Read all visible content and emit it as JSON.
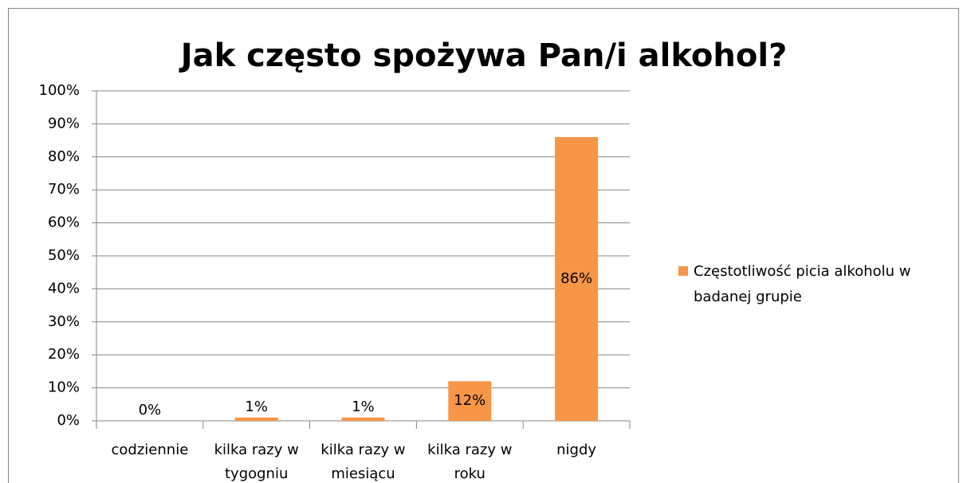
{
  "chart_data": {
    "type": "bar",
    "title": "Jak często spożywa Pan/i alkohol?",
    "categories": [
      "codziennie",
      "kilka razy w tygogniu",
      "kilka razy w miesiącu",
      "kilka razy w roku",
      "nigdy"
    ],
    "series": [
      {
        "name": "Częstotliwość picia alkoholu w badanej grupie",
        "color": "#f79646",
        "values": [
          0,
          1,
          1,
          12,
          86
        ],
        "value_labels": [
          "0%",
          "1%",
          "1%",
          "12%",
          "86%"
        ]
      }
    ],
    "ylim": [
      0,
      100
    ],
    "yticks": [
      {
        "value": 0,
        "label": "0%"
      },
      {
        "value": 10,
        "label": "10%"
      },
      {
        "value": 20,
        "label": "20%"
      },
      {
        "value": 30,
        "label": "30%"
      },
      {
        "value": 40,
        "label": "40%"
      },
      {
        "value": 50,
        "label": "50%"
      },
      {
        "value": 60,
        "label": "60%"
      },
      {
        "value": 70,
        "label": "70%"
      },
      {
        "value": 80,
        "label": "80%"
      },
      {
        "value": 90,
        "label": "90%"
      },
      {
        "value": 100,
        "label": "100%"
      }
    ],
    "grid": true,
    "legend": "right"
  }
}
